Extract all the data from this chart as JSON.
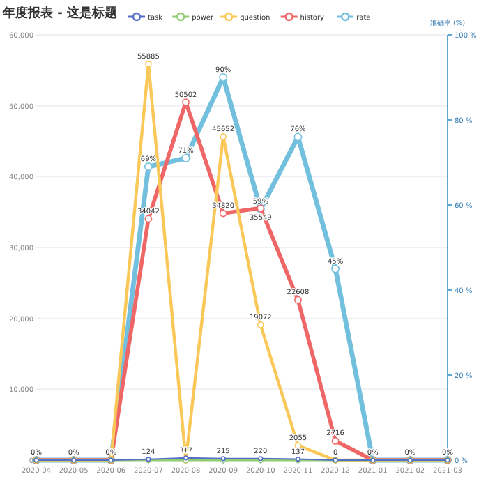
{
  "chart_data": {
    "type": "line",
    "title": "年度报表 - 这是标题",
    "y2label": "准确率 (%)",
    "categories": [
      "2020-04",
      "2020-05",
      "2020-06",
      "2020-07",
      "2020-08",
      "2020-09",
      "2020-10",
      "2020-11",
      "2020-12",
      "2021-01",
      "2021-02",
      "2021-03"
    ],
    "series": [
      {
        "name": "task",
        "color": "#5470c6",
        "values": [
          0,
          0,
          0,
          124,
          317,
          215,
          220,
          137,
          0,
          0,
          0,
          0
        ],
        "value_labels": [
          null,
          null,
          null,
          "124",
          "317",
          "215",
          "220",
          "137",
          "0",
          null,
          null,
          null
        ]
      },
      {
        "name": "power",
        "color": "#91cc75",
        "values": [
          0,
          0,
          0,
          0,
          0,
          0,
          0,
          0,
          0,
          0,
          0,
          0
        ]
      },
      {
        "name": "question",
        "color": "#fac858",
        "values": [
          0,
          0,
          0,
          55885,
          0,
          45652,
          19072,
          2055,
          0,
          0,
          0,
          0
        ],
        "value_labels": [
          null,
          null,
          null,
          "55885",
          null,
          "45652",
          "19072",
          "2055",
          null,
          null,
          null,
          null
        ]
      },
      {
        "name": "history",
        "color": "#ee6666",
        "values": [
          0,
          0,
          0,
          34042,
          50502,
          34820,
          35549,
          22608,
          2716,
          0,
          0,
          0
        ],
        "value_labels": [
          null,
          null,
          null,
          "34042",
          "50502",
          "34820",
          "35549",
          "22608",
          "2716",
          null,
          null,
          null
        ]
      },
      {
        "name": "rate",
        "color": "#73c0de",
        "axis": "y2",
        "values": [
          0,
          0,
          0,
          69,
          71,
          90,
          59,
          76,
          45,
          0,
          0,
          0
        ],
        "value_labels": [
          "0%",
          "0%",
          "0%",
          "69%",
          "71%",
          "90%",
          "59%",
          "76%",
          "45%",
          "0%",
          "0%",
          "0%"
        ]
      }
    ],
    "ylim": [
      0,
      60000
    ],
    "yticks": [
      {
        "value": 0,
        "label": "0"
      },
      {
        "value": 10000,
        "label": "10,000"
      },
      {
        "value": 20000,
        "label": "20,000"
      },
      {
        "value": 30000,
        "label": "30,000"
      },
      {
        "value": 40000,
        "label": "40,000"
      },
      {
        "value": 50000,
        "label": "50,000"
      },
      {
        "value": 60000,
        "label": "60,000"
      }
    ],
    "y2lim": [
      0,
      100
    ],
    "y2ticks": [
      {
        "value": 0,
        "label": "0 %"
      },
      {
        "value": 20,
        "label": "20 %"
      },
      {
        "value": 40,
        "label": "40 %"
      },
      {
        "value": 60,
        "label": "60 %"
      },
      {
        "value": 80,
        "label": "80 %"
      },
      {
        "value": 100,
        "label": "100 %"
      }
    ],
    "grid": "y",
    "legend": "top",
    "marker": "circle",
    "line_style": "solid"
  }
}
